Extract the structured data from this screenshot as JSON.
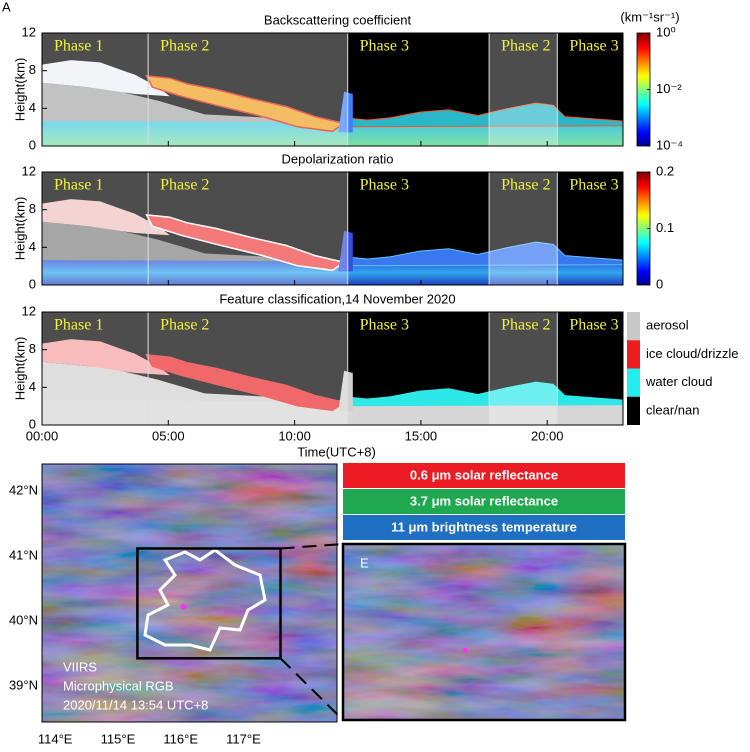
{
  "figure": {
    "panel_label": "A",
    "lidar": {
      "xlim": [
        0,
        23
      ],
      "xticks": [
        {
          "value": 0,
          "label": "00:00"
        },
        {
          "value": 5,
          "label": "05:00"
        },
        {
          "value": 10,
          "label": "10:00"
        },
        {
          "value": 15,
          "label": "15:00"
        },
        {
          "value": 20,
          "label": "20:00"
        }
      ],
      "xlabel": "Time(UTC+8)",
      "ylim": [
        0,
        12
      ],
      "yticks": [
        0,
        4,
        8,
        12
      ],
      "ylabel": "Height(km)",
      "phases": [
        {
          "label": "Phase 1",
          "start": 0,
          "end": 4.2,
          "shaded": true
        },
        {
          "label": "Phase 2",
          "start": 4.2,
          "end": 12.1,
          "shaded": true
        },
        {
          "label": "Phase 3",
          "start": 12.1,
          "end": 17.7,
          "shaded": false
        },
        {
          "label": "Phase 2",
          "start": 17.7,
          "end": 20.4,
          "shaded": true
        },
        {
          "label": "Phase 3",
          "start": 20.4,
          "end": 23,
          "shaded": false
        }
      ],
      "panels": [
        {
          "title": "Backscattering coefficient",
          "colorbar": {
            "unit": "(km⁻¹sr⁻¹)",
            "scale": "log",
            "lim": [
              0.0001,
              1
            ],
            "ticks": [
              {
                "value": 1,
                "label": "10⁰"
              },
              {
                "value": 0.01,
                "label": "10⁻²"
              },
              {
                "value": 0.0001,
                "label": "10⁻⁴"
              }
            ]
          }
        },
        {
          "title": "Depolarization ratio",
          "colorbar": {
            "scale": "linear",
            "lim": [
              0,
              0.2
            ],
            "ticks": [
              0.2,
              0.1,
              0
            ]
          }
        },
        {
          "title": "Feature classification,14 November 2020",
          "legend": [
            {
              "name": "aerosol",
              "color": "#c8c8c8"
            },
            {
              "name": "ice cloud/drizzle",
              "color": "#ee1c1c"
            },
            {
              "name": "water cloud",
              "color": "#22eeee"
            },
            {
              "name": "clear/nan",
              "color": "#000000"
            }
          ]
        }
      ]
    },
    "satellite": {
      "lonlim": [
        113.79,
        118.49
      ],
      "latlim": [
        38.45,
        42.42
      ],
      "lonticks": [
        {
          "value": 114,
          "label": "114°E"
        },
        {
          "value": 115,
          "label": "115°E"
        },
        {
          "value": 116,
          "label": "116°E"
        },
        {
          "value": 117,
          "label": "117°E"
        }
      ],
      "latticks": [
        {
          "value": 42,
          "label": "42°N"
        },
        {
          "value": 41,
          "label": "41°N"
        },
        {
          "value": 40,
          "label": "40°N"
        },
        {
          "value": 39,
          "label": "39°N"
        }
      ],
      "caption": [
        "VIIRS",
        "Microphysical RGB",
        "2020/11/14 13:54 UTC+8"
      ],
      "zoom_region": {
        "lon": [
          115.31,
          117.59
        ],
        "lat": [
          39.43,
          41.12
        ]
      },
      "site": {
        "lon": 116.3,
        "lat": 40.1
      },
      "inset_label": "E",
      "rgb_legend": [
        {
          "name": "0.6 μm solar reflectance",
          "color": "#ec1c24"
        },
        {
          "name": "3.7 μm solar reflectance",
          "color": "#1fa84f"
        },
        {
          "name": "11 μm brightness temperature",
          "color": "#1f6fc2"
        }
      ]
    }
  }
}
